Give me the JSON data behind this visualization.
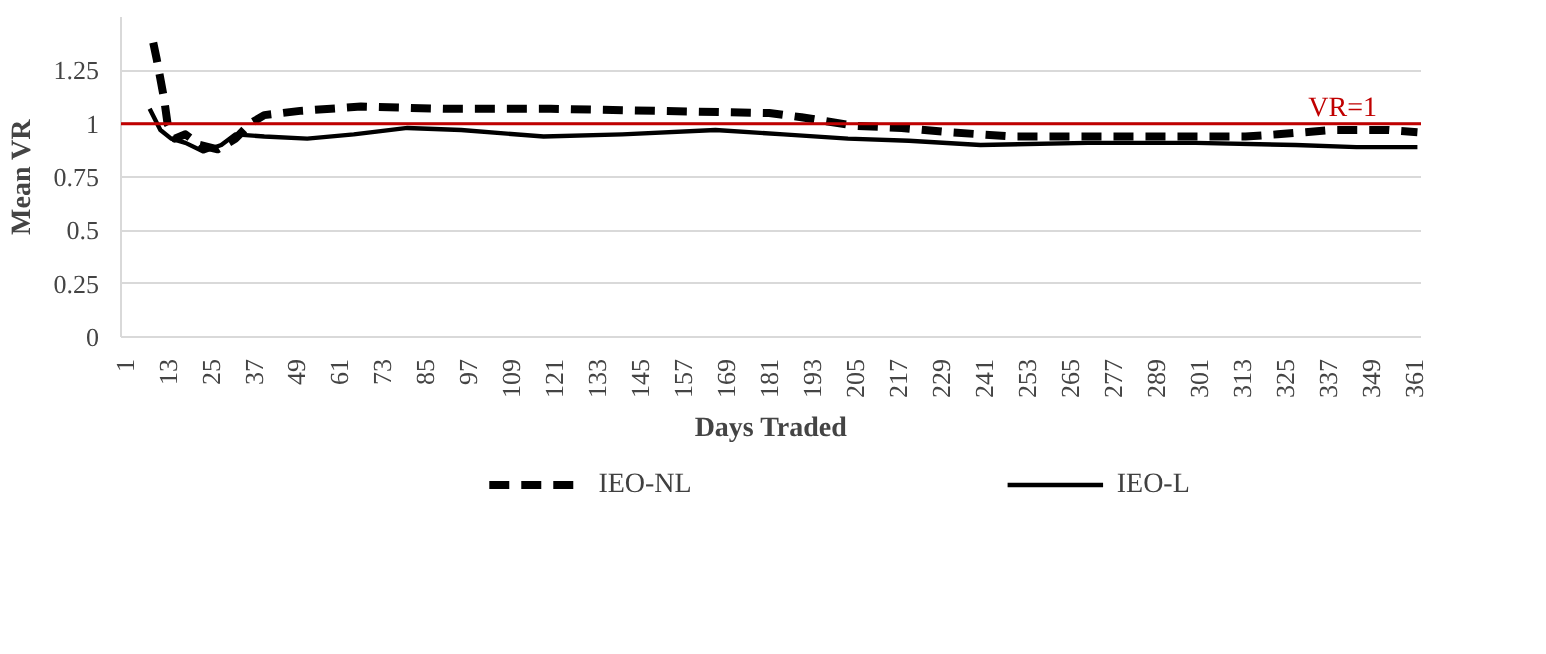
{
  "chart_data": {
    "type": "line",
    "xlabel": "Days Traded",
    "ylabel": "Mean VR",
    "xlim": [
      0,
      363
    ],
    "xticks": [
      1,
      13,
      25,
      37,
      49,
      61,
      73,
      85,
      97,
      109,
      121,
      133,
      145,
      157,
      169,
      181,
      193,
      205,
      217,
      229,
      241,
      253,
      265,
      277,
      289,
      301,
      313,
      325,
      337,
      349,
      361
    ],
    "ylim": [
      0,
      1.5
    ],
    "yticks": [
      0,
      0.25,
      0.5,
      0.75,
      1,
      1.25
    ],
    "grid": "y",
    "legend": "bottom",
    "ref_lines": [
      {
        "axis": "y",
        "value": 1,
        "label": "VR=1",
        "color": "#c00000"
      }
    ],
    "series": [
      {
        "name": "IEO-NL",
        "color": "#000000",
        "line_style": "dashed",
        "x": [
          9,
          10,
          12,
          13,
          15,
          18,
          22,
          27,
          32,
          36,
          40,
          50,
          67,
          90,
          120,
          150,
          181,
          190,
          205,
          218,
          231,
          249,
          280,
          314,
          323,
          338,
          354,
          362
        ],
        "values": [
          1.38,
          1.3,
          1.12,
          1.0,
          0.93,
          0.95,
          0.9,
          0.88,
          0.93,
          1.0,
          1.04,
          1.06,
          1.08,
          1.07,
          1.07,
          1.06,
          1.05,
          1.03,
          0.99,
          0.98,
          0.96,
          0.94,
          0.94,
          0.94,
          0.95,
          0.97,
          0.97,
          0.96
        ]
      },
      {
        "name": "IEO-L",
        "color": "#000000",
        "line_style": "solid",
        "x": [
          8,
          11,
          14,
          18,
          23,
          28,
          32,
          40,
          52,
          65,
          80,
          95,
          118,
          140,
          166,
          185,
          203,
          220,
          240,
          270,
          300,
          328,
          345,
          362
        ],
        "values": [
          1.07,
          0.97,
          0.93,
          0.91,
          0.87,
          0.9,
          0.95,
          0.94,
          0.93,
          0.95,
          0.98,
          0.97,
          0.94,
          0.95,
          0.97,
          0.95,
          0.93,
          0.92,
          0.9,
          0.91,
          0.91,
          0.9,
          0.89,
          0.89
        ]
      }
    ]
  }
}
